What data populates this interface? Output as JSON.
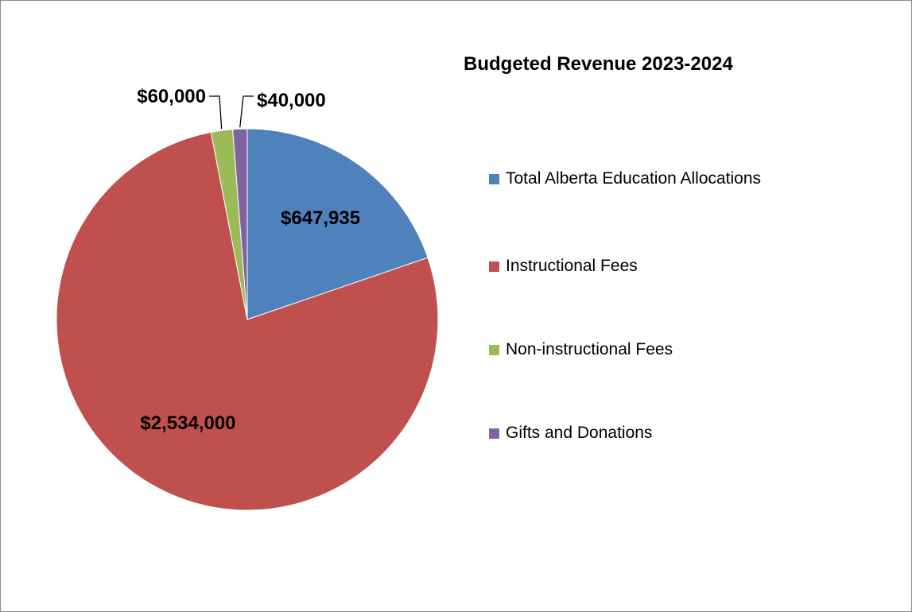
{
  "chart_data": {
    "type": "pie",
    "title": "Budgeted Revenue 2023-2024",
    "legend_position": "right",
    "slices": [
      {
        "name": "Total Alberta Education Allocations",
        "value": 647935,
        "label": "$647,935",
        "color": "#4f81bd"
      },
      {
        "name": "Instructional Fees",
        "value": 2534000,
        "label": "$2,534,000",
        "color": "#c0504d"
      },
      {
        "name": "Non-instructional Fees",
        "value": 60000,
        "label": "$60,000",
        "color": "#9bbb59"
      },
      {
        "name": "Gifts and Donations",
        "value": 40000,
        "label": "$40,000",
        "color": "#8064a2"
      }
    ]
  }
}
